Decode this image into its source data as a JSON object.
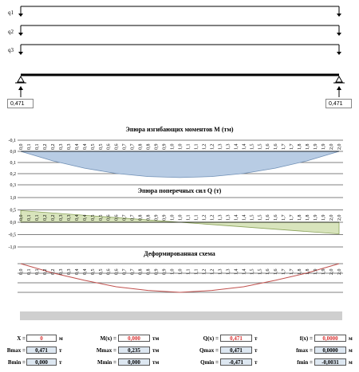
{
  "loads": {
    "q1": "q1",
    "q2": "q2",
    "q3": "q3"
  },
  "reactions": {
    "left": "0,471",
    "right": "0,471"
  },
  "charts": {
    "moment_title": "Эпюра изгибающих моментов M (тм)",
    "shear_title": "Эпюра поперечных сил Q (т)",
    "deform_title": "Деформированная схема",
    "x_ticks": [
      "0,0",
      "0,1",
      "0,1",
      "0,2",
      "0,2",
      "0,3",
      "0,3",
      "0,4",
      "0,4",
      "0,5",
      "0,5",
      "0,6",
      "0,6",
      "0,7",
      "0,7",
      "0,8",
      "0,8",
      "0,9",
      "0,9",
      "1,0",
      "1,0",
      "1,1",
      "1,1",
      "1,2",
      "1,2",
      "1,3",
      "1,3",
      "1,4",
      "1,4",
      "1,5",
      "1,5",
      "1,6",
      "1,6",
      "1,7",
      "1,7",
      "1,8",
      "1,8",
      "1,9",
      "1,9",
      "2,0",
      "2,0"
    ],
    "moment_y_ticks": [
      "-0,1",
      "0,0",
      "0,1",
      "0,2",
      "0,3"
    ],
    "shear_y_ticks": [
      "1,0",
      "0,5",
      "0,0",
      "-0,5",
      "-1,0"
    ],
    "colors": {
      "moment_fill": "#b8cce4",
      "shear_fill": "#d8e4bc",
      "deform_line": "#c0504d"
    }
  },
  "chart_data": [
    {
      "type": "area",
      "title": "Эпюра изгибающих моментов M (тм)",
      "x": [
        0,
        0.2,
        0.4,
        0.6,
        0.8,
        1.0,
        1.2,
        1.4,
        1.6,
        1.8,
        2.0
      ],
      "values": [
        0,
        0.085,
        0.151,
        0.198,
        0.226,
        0.235,
        0.226,
        0.198,
        0.151,
        0.085,
        0
      ],
      "ylim": [
        -0.1,
        0.3
      ],
      "y_reversed": true
    },
    {
      "type": "area",
      "title": "Эпюра поперечных сил Q (т)",
      "x": [
        0,
        2.0
      ],
      "values": [
        0.471,
        -0.471
      ],
      "ylim": [
        -1.0,
        1.0
      ]
    },
    {
      "type": "line",
      "title": "Деформированная схема",
      "x": [
        0,
        0.2,
        0.4,
        0.6,
        0.8,
        1.0,
        1.2,
        1.4,
        1.6,
        1.8,
        2.0
      ],
      "values": [
        0,
        -0.001,
        -0.0018,
        -0.0025,
        -0.0029,
        -0.0031,
        -0.0029,
        -0.0025,
        -0.0018,
        -0.001,
        0
      ]
    }
  ],
  "results": {
    "x_label": "X =",
    "x_value": "0",
    "x_unit": "м",
    "mx_label": "M(x) =",
    "mx_value": "0,000",
    "mx_unit": "тм",
    "qx_label": "Q(x) =",
    "qx_value": "0,471",
    "qx_unit": "т",
    "fx_label": "f(x) =",
    "fx_value": "0,0000",
    "fx_unit": "м",
    "bmax_label": "Bmax =",
    "bmax_value": "0,471",
    "bmax_unit": "т",
    "mmax_label": "Mmax =",
    "mmax_value": "0,235",
    "mmax_unit": "тм",
    "qmax_label": "Qmax =",
    "qmax_value": "0,471",
    "qmax_unit": "т",
    "fmax_label": "fmax =",
    "fmax_value": "0,0000",
    "fmax_unit": "м",
    "bmin_label": "Bmin =",
    "bmin_value": "0,000",
    "bmin_unit": "т",
    "mmin_label": "Mmin =",
    "mmin_value": "0,000",
    "mmin_unit": "тм",
    "qmin_label": "Qmin =",
    "qmin_value": "-0,471",
    "qmin_unit": "т",
    "fmin_label": "fmin =",
    "fmin_value": "-0,0031",
    "fmin_unit": "м"
  }
}
